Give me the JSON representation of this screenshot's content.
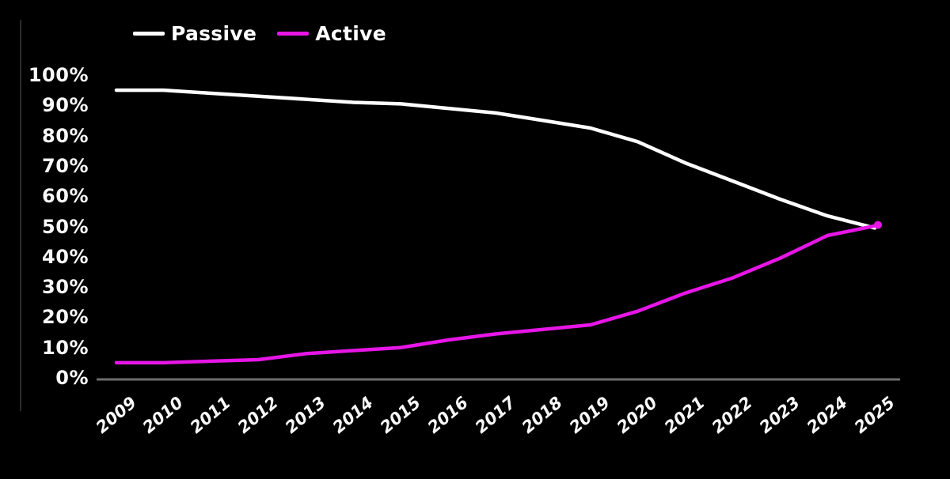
{
  "chart_data": {
    "type": "line",
    "title": "",
    "xlabel": "",
    "ylabel": "",
    "categories": [
      "2009",
      "2010",
      "2011",
      "2012",
      "2013",
      "2014",
      "2015",
      "2016",
      "2017",
      "2018",
      "2019",
      "2020",
      "2021",
      "2022",
      "2023",
      "2024",
      "2025"
    ],
    "series": [
      {
        "name": "Passive",
        "color": "#ffffff",
        "values": [
          95,
          95,
          94,
          93,
          92,
          91,
          90.5,
          89,
          87.5,
          85,
          82.5,
          78,
          71,
          65,
          59,
          53.5,
          49.5
        ]
      },
      {
        "name": "Active",
        "color": "#e616e6",
        "values": [
          5,
          5,
          5.5,
          6,
          8,
          9,
          10,
          12.5,
          14.5,
          16,
          17.5,
          22,
          28,
          33,
          39.5,
          47,
          50.5
        ]
      }
    ],
    "ytick_labels": [
      "100%",
      "90%",
      "80%",
      "70%",
      "60%",
      "50%",
      "40%",
      "30%",
      "20%",
      "10%",
      "0%"
    ],
    "ytick_values": [
      100,
      90,
      80,
      70,
      60,
      50,
      40,
      30,
      20,
      10,
      0
    ],
    "ylim": [
      0,
      100
    ],
    "grid": false,
    "legend_position": "top",
    "background_color": "#000000",
    "axis_color": "#6e6e6e"
  },
  "legend": {
    "items": [
      {
        "label": "Passive",
        "color": "#ffffff"
      },
      {
        "label": "Active",
        "color": "#e616e6"
      }
    ]
  }
}
